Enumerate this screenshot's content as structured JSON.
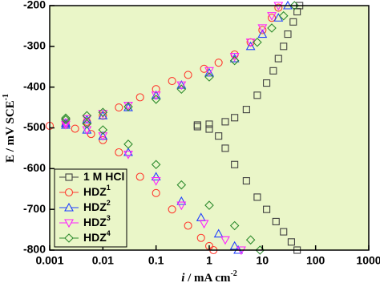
{
  "chart_data": {
    "type": "scatter",
    "x_label": [
      "i",
      " / mA cm",
      "-2"
    ],
    "y_label": [
      "E / mV SCE",
      "-1"
    ],
    "xlim": [
      0.001,
      1000
    ],
    "ylim": [
      -800,
      -200
    ],
    "log_x": true,
    "xticks": [
      0.001,
      0.01,
      0.1,
      1,
      10,
      100,
      1000
    ],
    "yticks": [
      -800,
      -700,
      -600,
      -500,
      -400,
      -300,
      -200
    ],
    "background": "#eaf6c8",
    "legend": "lower-left",
    "series": [
      {
        "name": "1 M HCl",
        "superscript": null,
        "color": "#404040",
        "marker": "square",
        "x": [
          45,
          35,
          25,
          18,
          12,
          8,
          5,
          3,
          2,
          1.5,
          1,
          0.6,
          0.6,
          1,
          2,
          3,
          5,
          8,
          12,
          16,
          20,
          25,
          30,
          38,
          45,
          50
        ],
        "values": [
          -800,
          -780,
          -755,
          -730,
          -700,
          -670,
          -630,
          -590,
          -550,
          -520,
          -503,
          -497,
          -493,
          -491,
          -485,
          -475,
          -455,
          -420,
          -390,
          -360,
          -330,
          -300,
          -270,
          -240,
          -215,
          -200
        ]
      },
      {
        "name": "HDZ",
        "superscript": "1",
        "color": "#ff3b30",
        "marker": "circle",
        "x": [
          1.2,
          1,
          0.7,
          0.4,
          0.2,
          0.1,
          0.05,
          0.02,
          0.01,
          0.006,
          0.003,
          0.001,
          0.002,
          0.005,
          0.01,
          0.02,
          0.05,
          0.1,
          0.2,
          0.4,
          0.8,
          1.5,
          3,
          6,
          10,
          15,
          20
        ],
        "values": [
          -800,
          -790,
          -770,
          -740,
          -700,
          -660,
          -620,
          -560,
          -530,
          -515,
          -502,
          -495,
          -492,
          -485,
          -470,
          -450,
          -425,
          -405,
          -385,
          -370,
          -355,
          -340,
          -320,
          -290,
          -260,
          -230,
          -205
        ]
      },
      {
        "name": "HDZ",
        "superscript": "2",
        "color": "#2040ff",
        "marker": "triangle-up",
        "x": [
          3.5,
          3,
          1.5,
          0.7,
          0.3,
          0.1,
          0.03,
          0.01,
          0.005,
          0.002,
          0.002,
          0.005,
          0.01,
          0.03,
          0.1,
          0.3,
          1,
          3,
          6,
          10,
          20,
          30
        ],
        "values": [
          -800,
          -790,
          -760,
          -720,
          -680,
          -620,
          -560,
          -520,
          -505,
          -493,
          -488,
          -480,
          -470,
          -450,
          -420,
          -395,
          -365,
          -330,
          -300,
          -270,
          -230,
          -200
        ]
      },
      {
        "name": "HDZ",
        "superscript": "3",
        "color": "#ff20ff",
        "marker": "triangle-down",
        "x": [
          4,
          2,
          0.8,
          0.3,
          0.1,
          0.03,
          0.01,
          0.005,
          0.002,
          0.002,
          0.005,
          0.01,
          0.03,
          0.1,
          0.3,
          1,
          3,
          6,
          10,
          15,
          20
        ],
        "values": [
          -800,
          -775,
          -735,
          -690,
          -630,
          -565,
          -520,
          -505,
          -492,
          -487,
          -478,
          -465,
          -445,
          -420,
          -395,
          -360,
          -325,
          -290,
          -255,
          -225,
          -200
        ]
      },
      {
        "name": "HDZ",
        "superscript": "4",
        "color": "#2e8b2e",
        "marker": "diamond",
        "x": [
          9,
          6,
          3,
          1,
          0.3,
          0.1,
          0.03,
          0.01,
          0.005,
          0.002,
          0.002,
          0.005,
          0.01,
          0.03,
          0.1,
          0.3,
          1,
          3,
          8,
          15,
          25,
          40
        ],
        "values": [
          -800,
          -775,
          -740,
          -690,
          -640,
          -590,
          -540,
          -505,
          -490,
          -480,
          -476,
          -470,
          -462,
          -448,
          -430,
          -405,
          -375,
          -335,
          -290,
          -255,
          -225,
          -200
        ]
      }
    ]
  }
}
